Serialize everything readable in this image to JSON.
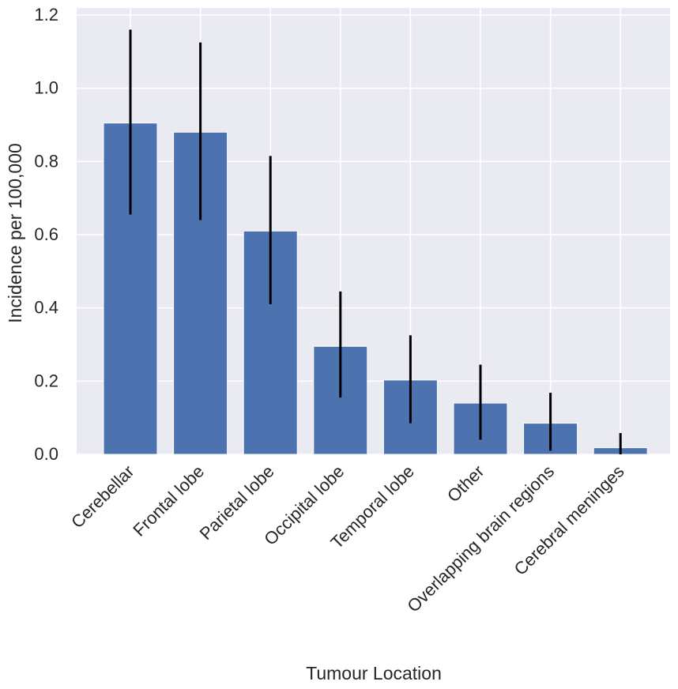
{
  "colors": {
    "plot_background": "#eaeaf2",
    "grid": "#ffffff",
    "bar_fill": "#4c72b0",
    "error_bar": "#000000",
    "text": "#262626"
  },
  "chart_data": {
    "type": "bar",
    "xlabel": "Tumour Location",
    "ylabel": "Incidence per 100,000",
    "ylim": [
      0,
      1.2
    ],
    "yticks": [
      "0.0",
      "0.2",
      "0.4",
      "0.6",
      "0.8",
      "1.0",
      "1.2"
    ],
    "grid": true,
    "categories": [
      "Cerebellar",
      "Frontal lobe",
      "Parietal lobe",
      "Occipital lobe",
      "Temporal lobe",
      "Other",
      "Overlapping brain regions",
      "Cerebral meninges"
    ],
    "values": [
      0.905,
      0.88,
      0.61,
      0.295,
      0.203,
      0.14,
      0.085,
      0.018
    ],
    "error_low": [
      0.655,
      0.64,
      0.41,
      0.155,
      0.085,
      0.04,
      0.01,
      0.0
    ],
    "error_high": [
      1.16,
      1.125,
      0.815,
      0.445,
      0.325,
      0.245,
      0.168,
      0.058
    ]
  }
}
